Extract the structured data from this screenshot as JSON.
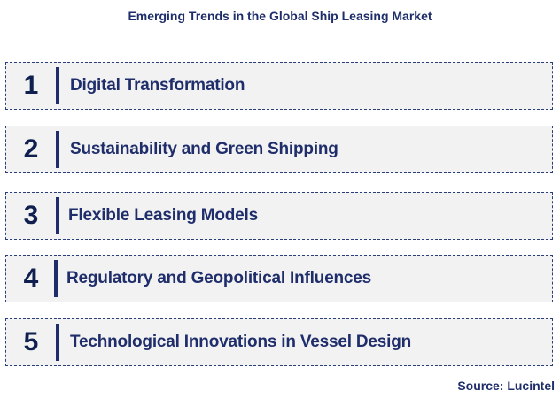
{
  "title": "Emerging Trends in the Global Ship Leasing Market",
  "trends": [
    {
      "number": "1",
      "label": "Digital Transformation"
    },
    {
      "number": "2",
      "label": "Sustainability and Green Shipping"
    },
    {
      "number": "3",
      "label": "Flexible Leasing Models"
    },
    {
      "number": "4",
      "label": "Regulatory and Geopolitical Influences"
    },
    {
      "number": "5",
      "label": "Technological Innovations in Vessel Design"
    }
  ],
  "source": "Source: Lucintel"
}
